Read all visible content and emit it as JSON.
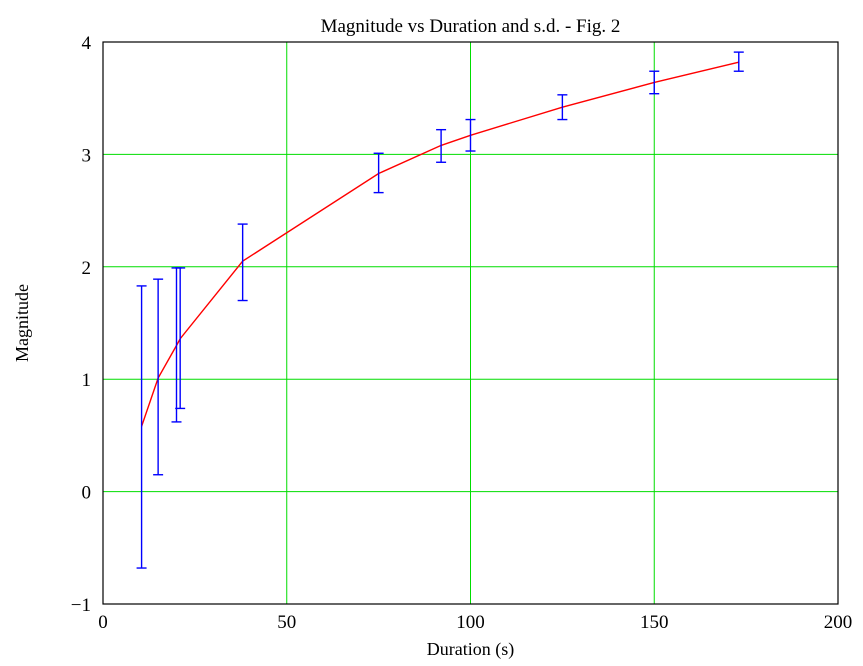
{
  "chart_data": {
    "type": "line",
    "title": "Magnitude vs Duration and s.d. - Fig. 2",
    "xlabel": "Duration (s)",
    "ylabel": "Magnitude",
    "xlim": [
      0,
      200
    ],
    "ylim": [
      -1,
      4
    ],
    "xticks": [
      0,
      50,
      100,
      150,
      200
    ],
    "yticks": [
      -1,
      0,
      1,
      2,
      3,
      4
    ],
    "xtick_labels": [
      "0",
      "50",
      "100",
      "150",
      "200"
    ],
    "ytick_labels": [
      "−1",
      "0",
      "1",
      "2",
      "3",
      "4"
    ],
    "grid": true,
    "grid_color": "#00dd00",
    "series": [
      {
        "type": "line",
        "color": "#ff0000",
        "x": [
          10.5,
          15,
          20,
          21,
          38,
          75,
          92,
          100,
          125,
          150,
          173
        ],
        "y": [
          0.58,
          1.01,
          1.3,
          1.36,
          2.05,
          2.83,
          3.08,
          3.17,
          3.42,
          3.64,
          3.82
        ]
      },
      {
        "type": "errorbar",
        "color": "#0000ff",
        "x": [
          10.5,
          15,
          20,
          21,
          38,
          75,
          92,
          100,
          125,
          150,
          173
        ],
        "low": [
          -0.68,
          0.15,
          0.62,
          0.74,
          1.7,
          2.66,
          2.93,
          3.03,
          3.31,
          3.54,
          3.74
        ],
        "high": [
          1.83,
          1.89,
          1.99,
          1.99,
          2.38,
          3.01,
          3.22,
          3.31,
          3.53,
          3.74,
          3.91
        ]
      }
    ]
  }
}
